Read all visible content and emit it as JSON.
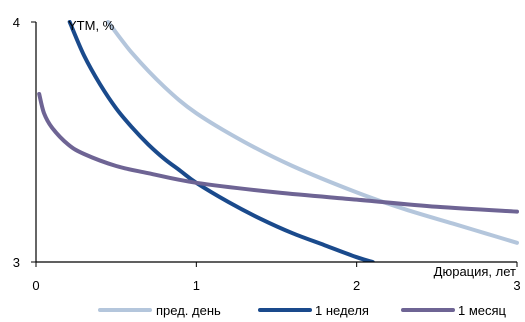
{
  "chart_data": {
    "type": "line",
    "ylabel": "YTM, %",
    "xlabel": "Дюрация, лет",
    "xlim": [
      0,
      3
    ],
    "ylim": [
      3,
      4
    ],
    "x_ticks": [
      "0",
      "1",
      "2",
      "3"
    ],
    "y_ticks": [
      "3",
      "4"
    ],
    "grid": false,
    "legend_position": "bottom",
    "series": [
      {
        "name": "пред. день",
        "color": "#b4c6dc",
        "x": [
          0.45,
          0.6,
          0.8,
          1.0,
          1.3,
          1.6,
          2.0,
          2.3,
          2.6,
          2.8,
          3.0
        ],
        "y": [
          4.0,
          3.87,
          3.73,
          3.62,
          3.5,
          3.4,
          3.29,
          3.22,
          3.16,
          3.12,
          3.08
        ]
      },
      {
        "name": "1 неделя",
        "color": "#1a4a8c",
        "x": [
          0.21,
          0.3,
          0.4,
          0.5,
          0.6,
          0.7,
          0.8,
          0.9,
          1.0,
          1.2,
          1.4,
          1.6,
          1.8,
          2.0,
          2.1
        ],
        "y": [
          4.0,
          3.86,
          3.74,
          3.64,
          3.56,
          3.49,
          3.43,
          3.38,
          3.33,
          3.25,
          3.18,
          3.12,
          3.07,
          3.02,
          3.0
        ]
      },
      {
        "name": "1 месяц",
        "color": "#6e6494",
        "x": [
          0.02,
          0.05,
          0.1,
          0.2,
          0.3,
          0.5,
          0.7,
          1.0,
          1.5,
          2.0,
          2.5,
          3.0
        ],
        "y": [
          3.7,
          3.62,
          3.56,
          3.49,
          3.45,
          3.4,
          3.37,
          3.33,
          3.29,
          3.26,
          3.23,
          3.21
        ]
      }
    ]
  }
}
